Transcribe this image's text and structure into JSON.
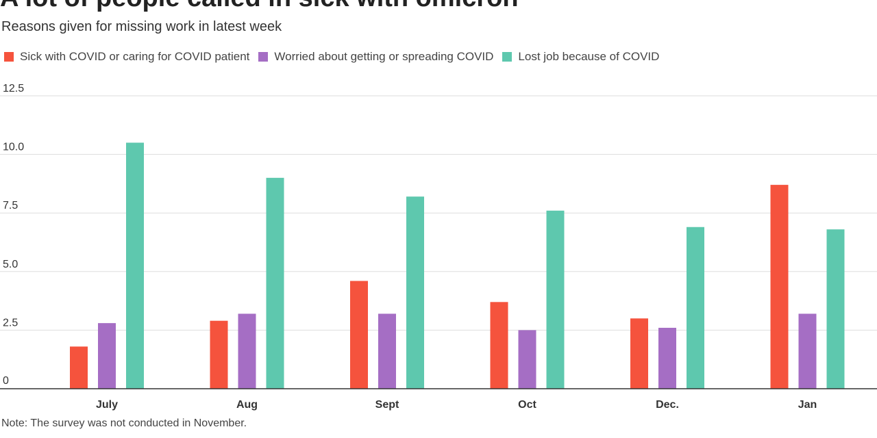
{
  "title": "A lot of people called in sick with omicron",
  "subtitle": "Reasons given for missing work in latest week",
  "note": "Note: The survey was not conducted in November.",
  "legend": [
    {
      "label": "Sick with COVID or caring for COVID patient",
      "color": "#f5533d"
    },
    {
      "label": "Worried about getting or spreading COVID",
      "color": "#a56ec4"
    },
    {
      "label": "Lost job because of COVID",
      "color": "#5ec8ae"
    }
  ],
  "chart_data": {
    "type": "bar",
    "title": "A lot of people called in sick with omicron",
    "subtitle": "Reasons given for missing work in latest week",
    "categories": [
      "July",
      "Aug",
      "Sept",
      "Oct",
      "Dec.",
      "Jan"
    ],
    "series": [
      {
        "name": "Sick with COVID or caring for COVID patient",
        "color": "#f5533d",
        "values": [
          1.8,
          2.9,
          4.6,
          3.7,
          3.0,
          8.7
        ]
      },
      {
        "name": "Worried about getting or spreading COVID",
        "color": "#a56ec4",
        "values": [
          2.8,
          3.2,
          3.2,
          2.5,
          2.6,
          3.2
        ]
      },
      {
        "name": "Lost job because of COVID",
        "color": "#5ec8ae",
        "values": [
          10.5,
          9.0,
          8.2,
          7.6,
          6.9,
          6.8
        ]
      }
    ],
    "yticks": [
      "0",
      "2.5",
      "5.0",
      "7.5",
      "10.0",
      "12.5"
    ],
    "ylim": [
      0,
      12.5
    ],
    "grid": true,
    "legend_position": "top-left"
  }
}
